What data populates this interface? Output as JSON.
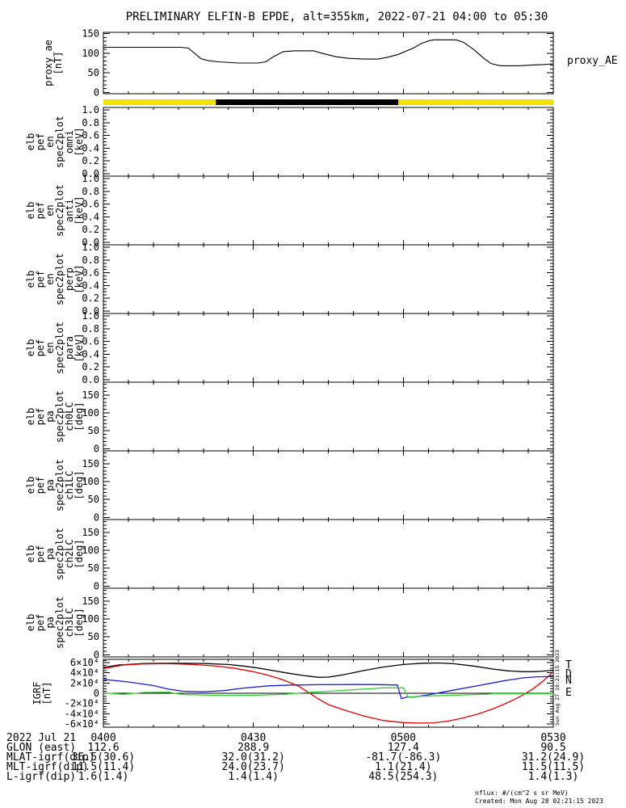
{
  "title": "PRELIMINARY ELFIN-B EPDE, alt=355km, 2022-07-21 04:00 to 05:30",
  "proxy_panel_right_label": "proxy_AE",
  "vertical_timestamp": "Sun Aug 27 18:21:15 2023",
  "footer": {
    "units_note": "nflux: #/(cm^2 s sr MeV)",
    "created": "Created: Mon Aug 28 02:21:15 2023"
  },
  "colors": {
    "black": "#000000",
    "red": "#e60000",
    "blue": "#1a1ad9",
    "green": "#2ed22e",
    "yellow": "#f6e000"
  },
  "x_axis": {
    "range_minutes": [
      0,
      90
    ],
    "minor_step_min": 5,
    "ticks": [
      {
        "t": 0,
        "label": "0400"
      },
      {
        "t": 30,
        "label": "0430"
      },
      {
        "t": 60,
        "label": "0500"
      },
      {
        "t": 90,
        "label": "0530"
      }
    ]
  },
  "panels": [
    {
      "name": "proxy-ae",
      "label_lines": [
        "proxy_ae",
        "[nT]"
      ],
      "ymin": 0,
      "ymax": 150,
      "minor": 10,
      "ticks": [
        {
          "v": 0,
          "l": "0"
        },
        {
          "v": 50,
          "l": "50"
        },
        {
          "v": 100,
          "l": "100"
        },
        {
          "v": 150,
          "l": "150"
        }
      ]
    },
    {
      "name": "en-omni",
      "label_lines": [
        "elb",
        "pef",
        "en",
        "spec2plot",
        "omni",
        "[keV]"
      ],
      "ymin": 0,
      "ymax": 1,
      "minor": 0.05,
      "empty": true,
      "ticks": [
        {
          "v": 0,
          "l": "0.0"
        },
        {
          "v": 0.2,
          "l": "0.2"
        },
        {
          "v": 0.4,
          "l": "0.4"
        },
        {
          "v": 0.6,
          "l": "0.6"
        },
        {
          "v": 0.8,
          "l": "0.8"
        },
        {
          "v": 1,
          "l": "1.0"
        }
      ]
    },
    {
      "name": "en-anti",
      "label_lines": [
        "elb",
        "pef",
        "en",
        "spec2plot",
        "anti",
        "[keV]"
      ],
      "ymin": 0,
      "ymax": 1,
      "minor": 0.05,
      "empty": true,
      "ticks": [
        {
          "v": 0,
          "l": "0.0"
        },
        {
          "v": 0.2,
          "l": "0.2"
        },
        {
          "v": 0.4,
          "l": "0.4"
        },
        {
          "v": 0.6,
          "l": "0.6"
        },
        {
          "v": 0.8,
          "l": "0.8"
        },
        {
          "v": 1,
          "l": "1.0"
        }
      ]
    },
    {
      "name": "en-perp",
      "label_lines": [
        "elb",
        "pef",
        "en",
        "spec2plot",
        "perp",
        "[keV]"
      ],
      "ymin": 0,
      "ymax": 1,
      "minor": 0.05,
      "empty": true,
      "ticks": [
        {
          "v": 0,
          "l": "0.0"
        },
        {
          "v": 0.2,
          "l": "0.2"
        },
        {
          "v": 0.4,
          "l": "0.4"
        },
        {
          "v": 0.6,
          "l": "0.6"
        },
        {
          "v": 0.8,
          "l": "0.8"
        },
        {
          "v": 1,
          "l": "1.0"
        }
      ]
    },
    {
      "name": "en-para",
      "label_lines": [
        "elb",
        "pef",
        "en",
        "spec2plot",
        "para",
        "[keV]"
      ],
      "ymin": 0,
      "ymax": 1,
      "minor": 0.05,
      "empty": true,
      "ticks": [
        {
          "v": 0,
          "l": "0.0"
        },
        {
          "v": 0.2,
          "l": "0.2"
        },
        {
          "v": 0.4,
          "l": "0.4"
        },
        {
          "v": 0.6,
          "l": "0.6"
        },
        {
          "v": 0.8,
          "l": "0.8"
        },
        {
          "v": 1,
          "l": "1.0"
        }
      ]
    },
    {
      "name": "pa-ch0lc",
      "label_lines": [
        "elb",
        "pef",
        "pa",
        "spec2plot",
        "ch0LC",
        "[deg]"
      ],
      "ymin": 0,
      "ymax": 180,
      "minor": 10,
      "empty": true,
      "ticks": [
        {
          "v": 0,
          "l": "0"
        },
        {
          "v": 50,
          "l": "50"
        },
        {
          "v": 100,
          "l": "100"
        },
        {
          "v": 150,
          "l": "150"
        }
      ]
    },
    {
      "name": "pa-ch1lc",
      "label_lines": [
        "elb",
        "pef",
        "pa",
        "spec2plot",
        "ch1LC",
        "[deg]"
      ],
      "ymin": 0,
      "ymax": 180,
      "minor": 10,
      "empty": true,
      "ticks": [
        {
          "v": 0,
          "l": "0"
        },
        {
          "v": 50,
          "l": "50"
        },
        {
          "v": 100,
          "l": "100"
        },
        {
          "v": 150,
          "l": "150"
        }
      ]
    },
    {
      "name": "pa-ch2lc",
      "label_lines": [
        "elb",
        "pef",
        "pa",
        "spec2plot",
        "ch2LC",
        "[deg]"
      ],
      "ymin": 0,
      "ymax": 180,
      "minor": 10,
      "empty": true,
      "ticks": [
        {
          "v": 0,
          "l": "0"
        },
        {
          "v": 50,
          "l": "50"
        },
        {
          "v": 100,
          "l": "100"
        },
        {
          "v": 150,
          "l": "150"
        }
      ]
    },
    {
      "name": "pa-ch3lc",
      "label_lines": [
        "elb",
        "pef",
        "pa",
        "spec2plot",
        "ch3LC",
        "[deg]"
      ],
      "ymin": 0,
      "ymax": 180,
      "minor": 10,
      "empty": true,
      "ticks": [
        {
          "v": 0,
          "l": "0"
        },
        {
          "v": 50,
          "l": "50"
        },
        {
          "v": 100,
          "l": "100"
        },
        {
          "v": 150,
          "l": "150"
        }
      ]
    },
    {
      "name": "igrf",
      "label_lines": [
        "IGRF",
        "[nT]"
      ],
      "ymin": -66000,
      "ymax": 66000,
      "minor": 5000,
      "zero_line": true,
      "ticks": [
        {
          "v": 60000,
          "l": "6×10⁴"
        },
        {
          "v": 40000,
          "l": "4×10⁴"
        },
        {
          "v": 20000,
          "l": "2×10⁴"
        },
        {
          "v": 0,
          "l": "0"
        },
        {
          "v": -20000,
          "l": "-2×10⁴"
        },
        {
          "v": -40000,
          "l": "-4×10⁴"
        },
        {
          "v": -60000,
          "l": "-6×10⁴"
        }
      ]
    }
  ],
  "legend": [
    {
      "label": "T",
      "color_key": "black"
    },
    {
      "label": "D",
      "color_key": "red"
    },
    {
      "label": "N",
      "color_key": "blue"
    },
    {
      "label": "E",
      "color_key": "green"
    }
  ],
  "chart_data": [
    {
      "type": "line",
      "panel": "proxy-ae",
      "title": "proxy_AE",
      "ylabel": "proxy_ae [nT]",
      "ylim": [
        0,
        150
      ],
      "x_unit": "minutes after 04:00",
      "points": [
        [
          0,
          115
        ],
        [
          8,
          115
        ],
        [
          15.5,
          115
        ],
        [
          17,
          113
        ],
        [
          19.5,
          86
        ],
        [
          21,
          81
        ],
        [
          23,
          78
        ],
        [
          27,
          75
        ],
        [
          31,
          75
        ],
        [
          32.5,
          78
        ],
        [
          34,
          91
        ],
        [
          36,
          104
        ],
        [
          38,
          106
        ],
        [
          42,
          106
        ],
        [
          44,
          99
        ],
        [
          46.5,
          91
        ],
        [
          49,
          87
        ],
        [
          52,
          85
        ],
        [
          55,
          85
        ],
        [
          57,
          90
        ],
        [
          59,
          97
        ],
        [
          60.5,
          105
        ],
        [
          62,
          113
        ],
        [
          63.5,
          124
        ],
        [
          65,
          131
        ],
        [
          66,
          134
        ],
        [
          70.5,
          134
        ],
        [
          72,
          128
        ],
        [
          74,
          110
        ],
        [
          76,
          88
        ],
        [
          77.5,
          74
        ],
        [
          79,
          69
        ],
        [
          80,
          68
        ],
        [
          83,
          68
        ],
        [
          86,
          70
        ],
        [
          88,
          71
        ],
        [
          90,
          73
        ]
      ]
    },
    {
      "type": "bar",
      "panel": "flag-bar",
      "title": "orbit segment flag bar",
      "x_unit": "minutes after 04:00",
      "segments": [
        {
          "start_min": 0,
          "end_min": 22.5,
          "color_key": "yellow"
        },
        {
          "start_min": 22.5,
          "end_min": 59,
          "color_key": "black"
        },
        {
          "start_min": 59,
          "end_min": 90,
          "color_key": "yellow"
        }
      ]
    },
    {
      "type": "line",
      "panel": "igrf",
      "title": "IGRF",
      "ylabel": "IGRF [nT]",
      "ylim": [
        -66000,
        66000
      ],
      "x_unit": "minutes after 04:00",
      "series": [
        {
          "name": "T",
          "color_key": "black",
          "points": [
            [
              0,
              50000
            ],
            [
              3,
              55000
            ],
            [
              8,
              58000
            ],
            [
              14,
              58500
            ],
            [
              20,
              58000
            ],
            [
              25,
              56000
            ],
            [
              28,
              53000
            ],
            [
              31,
              49000
            ],
            [
              34,
              44000
            ],
            [
              37,
              39000
            ],
            [
              40,
              34500
            ],
            [
              43,
              31000
            ],
            [
              45,
              31500
            ],
            [
              48,
              36000
            ],
            [
              52,
              44000
            ],
            [
              56,
              51000
            ],
            [
              60,
              56000
            ],
            [
              64,
              58500
            ],
            [
              67,
              59000
            ],
            [
              70,
              57500
            ],
            [
              74,
              53000
            ],
            [
              78,
              47000
            ],
            [
              81,
              43500
            ],
            [
              84,
              42000
            ],
            [
              86,
              42000
            ],
            [
              88,
              43000
            ],
            [
              90,
              45000
            ]
          ]
        },
        {
          "name": "D",
          "color_key": "red",
          "points": [
            [
              0,
              48000
            ],
            [
              4,
              55000
            ],
            [
              8,
              57000
            ],
            [
              13,
              57500
            ],
            [
              18,
              56000
            ],
            [
              22,
              53500
            ],
            [
              26,
              49000
            ],
            [
              30,
              42000
            ],
            [
              33,
              35000
            ],
            [
              36,
              26000
            ],
            [
              39,
              14000
            ],
            [
              41,
              2000
            ],
            [
              43,
              -11000
            ],
            [
              45,
              -22000
            ],
            [
              48,
              -32000
            ],
            [
              52,
              -44000
            ],
            [
              56,
              -53000
            ],
            [
              60,
              -57000
            ],
            [
              63,
              -58000
            ],
            [
              66,
              -57500
            ],
            [
              69,
              -54000
            ],
            [
              72,
              -48000
            ],
            [
              75,
              -40000
            ],
            [
              78,
              -30000
            ],
            [
              80,
              -22000
            ],
            [
              82,
              -13000
            ],
            [
              84,
              -3000
            ],
            [
              86,
              9000
            ],
            [
              88,
              24000
            ],
            [
              90,
              42000
            ]
          ]
        },
        {
          "name": "N",
          "color_key": "blue",
          "points": [
            [
              0,
              27000
            ],
            [
              5,
              22000
            ],
            [
              10,
              15000
            ],
            [
              13,
              8000
            ],
            [
              16,
              4000
            ],
            [
              20,
              3000
            ],
            [
              24,
              5000
            ],
            [
              28,
              10000
            ],
            [
              33,
              14500
            ],
            [
              38,
              16000
            ],
            [
              43,
              16700
            ],
            [
              50,
              17000
            ],
            [
              55,
              16800
            ],
            [
              58.8,
              16000
            ],
            [
              59.6,
              -10500
            ],
            [
              60.8,
              -7000
            ],
            [
              62,
              -7500
            ],
            [
              65,
              -3000
            ],
            [
              70,
              6000
            ],
            [
              75,
              15000
            ],
            [
              80,
              24000
            ],
            [
              84,
              30000
            ],
            [
              87,
              32000
            ],
            [
              90,
              32500
            ]
          ]
        },
        {
          "name": "E",
          "color_key": "green",
          "points": [
            [
              0,
              1000
            ],
            [
              4,
              -2000
            ],
            [
              8,
              1500
            ],
            [
              13,
              2000
            ],
            [
              16,
              -2500
            ],
            [
              22,
              -4000
            ],
            [
              30,
              -4000
            ],
            [
              36,
              -2000
            ],
            [
              40,
              1000
            ],
            [
              45,
              4000
            ],
            [
              52,
              8000
            ],
            [
              56,
              10500
            ],
            [
              60,
              10500
            ],
            [
              61,
              -7900
            ],
            [
              63,
              -6000
            ],
            [
              66,
              -5000
            ],
            [
              70,
              -4000
            ],
            [
              73,
              -3000
            ],
            [
              77,
              -1500
            ],
            [
              78,
              -800
            ],
            [
              85,
              -800
            ],
            [
              90,
              -800
            ]
          ]
        }
      ]
    }
  ],
  "bottom_rows": [
    {
      "label": "2022 Jul 21",
      "values": [
        "0400",
        "0430",
        "0500",
        "0530"
      ]
    },
    {
      "label": "GLON (east)",
      "values": [
        "112.6",
        "288.9",
        "127.4",
        "90.5"
      ]
    },
    {
      "label": "MLAT-igrf(dip)",
      "values": [
        "36.5(30.6)",
        "32.0(31.2)",
        "-81.7(-86.3)",
        "31.2(24.9)"
      ]
    },
    {
      "label": "MLT-igrf(dip)",
      "values": [
        "11.5(11.4)",
        "24.0(23.7)",
        "1.1(21.4)",
        "11.5(11.5)"
      ]
    },
    {
      "label": "L-igrf(dip)",
      "values": [
        "1.6(1.4)",
        "1.4(1.4)",
        "48.5(254.3)",
        "1.4(1.3)"
      ]
    }
  ]
}
